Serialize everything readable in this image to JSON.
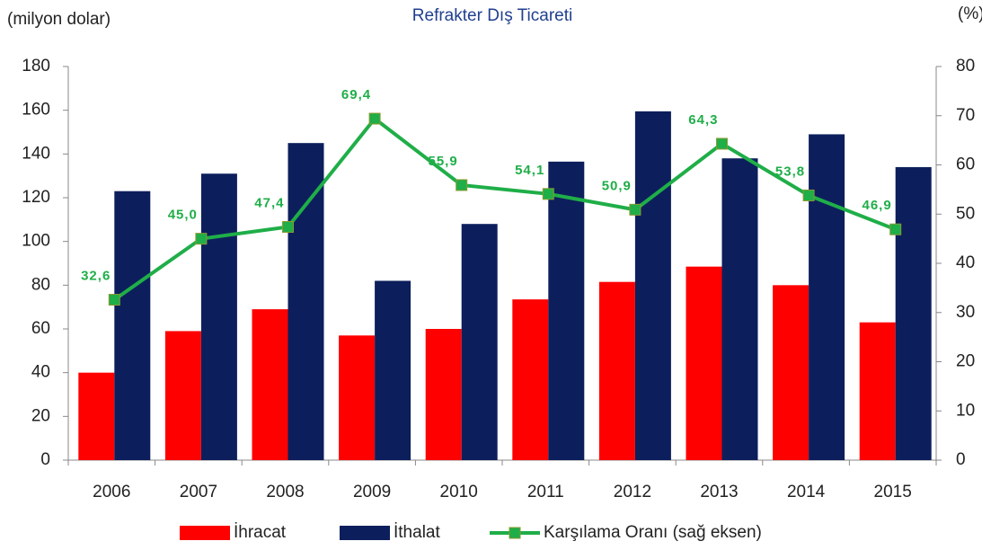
{
  "chart_data": {
    "type": "bar",
    "title": "Refrakter Dış Ticareti",
    "y_label": "(milyon dolar)",
    "y2_label": "(%)",
    "categories": [
      "2006",
      "2007",
      "2008",
      "2009",
      "2010",
      "2011",
      "2012",
      "2013",
      "2014",
      "2015"
    ],
    "series": [
      {
        "name": "İhracat",
        "color": "#ff0000",
        "type": "bar",
        "values": [
          40,
          59,
          69,
          57,
          60,
          73.5,
          81.5,
          88.5,
          80,
          63
        ]
      },
      {
        "name": "İthalat",
        "color": "#0c1f5c",
        "type": "bar",
        "values": [
          123,
          131,
          145,
          82,
          108,
          136.5,
          159.5,
          138,
          149,
          134
        ]
      },
      {
        "name": "Karşılama Oranı (sağ eksen)",
        "color": "#1fae48",
        "type": "line",
        "axis": "y2",
        "values": [
          32.6,
          45.0,
          47.4,
          69.4,
          55.9,
          54.1,
          50.9,
          64.3,
          53.8,
          46.9
        ],
        "value_labels": [
          "32,6",
          "45,0",
          "47,4",
          "69,4",
          "55,9",
          "54,1",
          "50,9",
          "64,3",
          "53,8",
          "46,9"
        ]
      }
    ],
    "ylim": [
      0,
      180
    ],
    "yticks": [
      0,
      20,
      40,
      60,
      80,
      100,
      120,
      140,
      160,
      180
    ],
    "y2lim": [
      0,
      80
    ],
    "y2ticks": [
      0,
      10,
      20,
      30,
      40,
      50,
      60,
      70,
      80
    ],
    "legend": "bottom"
  }
}
